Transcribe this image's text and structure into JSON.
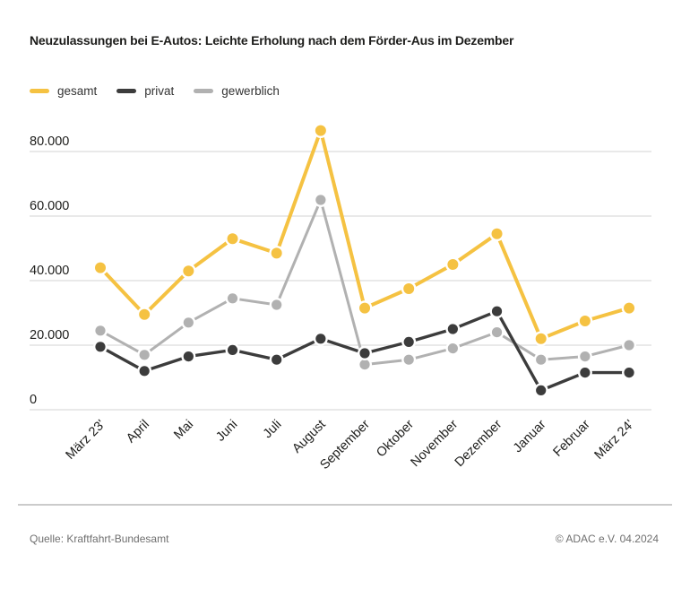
{
  "title": "Neuzulassungen bei E-Autos: Leichte Erholung nach dem Förder-Aus im Dezember",
  "legend": [
    {
      "label": "gesamt",
      "color": "#F5C242"
    },
    {
      "label": "privat",
      "color": "#3C3C3C"
    },
    {
      "label": "gewerblich",
      "color": "#B1B1B1"
    }
  ],
  "footer": {
    "source": "Quelle: Kraftfahrt-Bundesamt",
    "copyright": "© ADAC e.V. 04.2024"
  },
  "colors": {
    "background": "#FFFFFF",
    "gridline": "#DCDCDC",
    "tick_text": "#1D1D1B",
    "divider": "#CBCBCB",
    "muted_text": "#6F6F6F"
  },
  "chart_data": {
    "type": "line",
    "title": "Neuzulassungen bei E-Autos: Leichte Erholung nach dem Förder-Aus im Dezember",
    "xlabel": "",
    "ylabel": "",
    "grid": true,
    "legend_position": "top-left",
    "ylim": [
      0,
      90000
    ],
    "categories": [
      "März 23'",
      "April",
      "Mai",
      "Juni",
      "Juli",
      "August",
      "September",
      "Oktober",
      "November",
      "Dezember",
      "Januar",
      "Februar",
      "März 24'"
    ],
    "y_ticks": [
      {
        "value": 0,
        "label": "0"
      },
      {
        "value": 20000,
        "label": "20.000"
      },
      {
        "value": 40000,
        "label": "40.000"
      },
      {
        "value": 60000,
        "label": "60.000"
      },
      {
        "value": 80000,
        "label": "80.000"
      }
    ],
    "series": [
      {
        "name": "gesamt",
        "color": "#F5C242",
        "stroke_width": 4,
        "dot_radius": 6,
        "values": [
          44000,
          29500,
          43000,
          53000,
          48500,
          86500,
          31500,
          37500,
          45000,
          54500,
          22000,
          27500,
          31500
        ]
      },
      {
        "name": "privat",
        "color": "#3C3C3C",
        "stroke_width": 3.4,
        "dot_radius": 5.6,
        "values": [
          19500,
          12000,
          16500,
          18500,
          15500,
          22000,
          17500,
          21000,
          25000,
          30500,
          6000,
          11500,
          11500
        ]
      },
      {
        "name": "gewerblich",
        "color": "#B1B1B1",
        "stroke_width": 3,
        "dot_radius": 5.6,
        "values": [
          24500,
          17000,
          27000,
          34500,
          32500,
          65000,
          14000,
          15500,
          19000,
          24000,
          15500,
          16500,
          20000
        ]
      }
    ]
  }
}
